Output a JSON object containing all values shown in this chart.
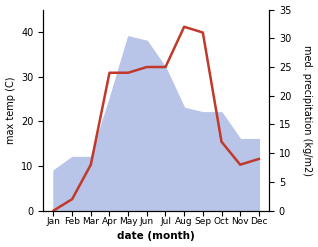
{
  "months": [
    "Jan",
    "Feb",
    "Mar",
    "Apr",
    "May",
    "Jun",
    "Jul",
    "Aug",
    "Sep",
    "Oct",
    "Nov",
    "Dec"
  ],
  "temperature": [
    9,
    12,
    12,
    25,
    39,
    38,
    32,
    23,
    22,
    22,
    16,
    16
  ],
  "precipitation": [
    0,
    2,
    8,
    24,
    24,
    25,
    25,
    32,
    31,
    12,
    8,
    9
  ],
  "temp_fill_color": "#b8c4e8",
  "precip_color": "#c0392b",
  "left_ylabel": "max temp (C)",
  "right_ylabel": "med. precipitation (kg/m2)",
  "xlabel": "date (month)",
  "ylim_left": [
    0,
    45
  ],
  "ylim_right": [
    0,
    35
  ],
  "yticks_left": [
    0,
    10,
    20,
    30,
    40
  ],
  "yticks_right": [
    0,
    5,
    10,
    15,
    20,
    25,
    30,
    35
  ],
  "background_color": "#ffffff"
}
